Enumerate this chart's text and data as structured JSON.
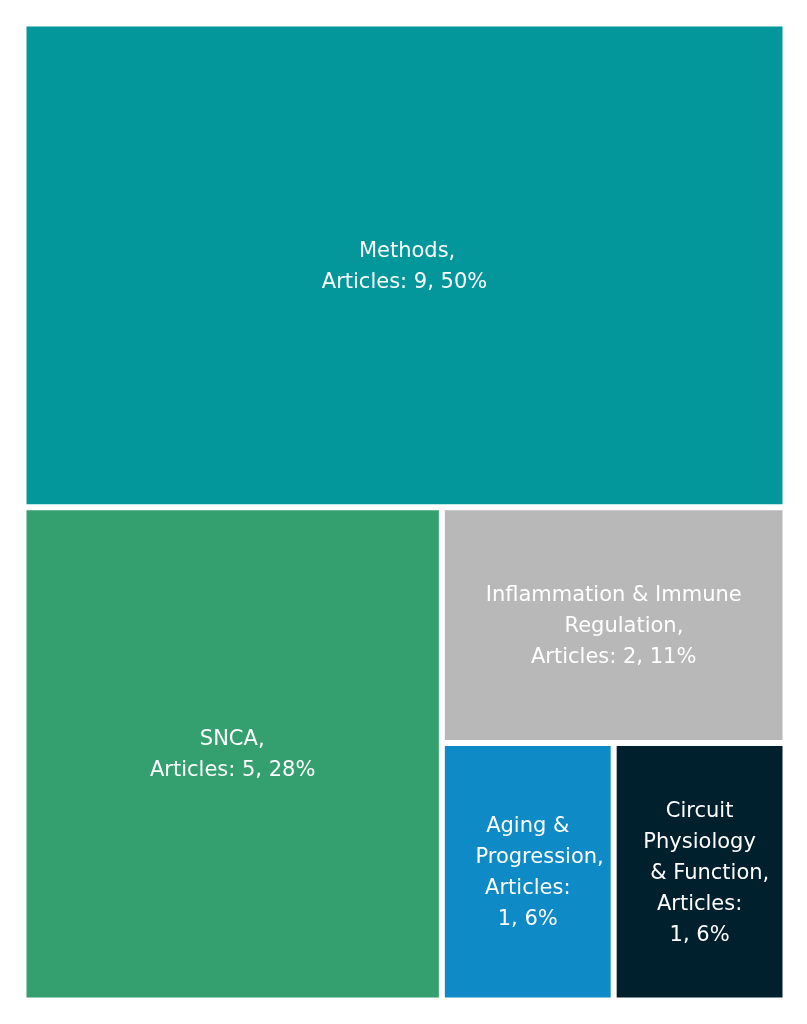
{
  "chart_data": {
    "type": "other",
    "categories": [
      "Methods",
      "SNCA",
      "Inflammation & Immune Regulation",
      "Aging & Progression",
      "Circuit Physiology & Function"
    ],
    "values": [
      50,
      28,
      11,
      6,
      6
    ],
    "annotations": [
      ","
    ],
    "value_labels": [
      "Articles: 9, 50%",
      "Articles: 5, 28%",
      "Articles: 2, 11%",
      "Articles: 1, 6%",
      "Articles: 1, 6%"
    ],
    "colors": [
      "#03979c",
      "#35a06f",
      "#b8b8b8",
      "#0e8ac6",
      "#00202e"
    ]
  }
}
